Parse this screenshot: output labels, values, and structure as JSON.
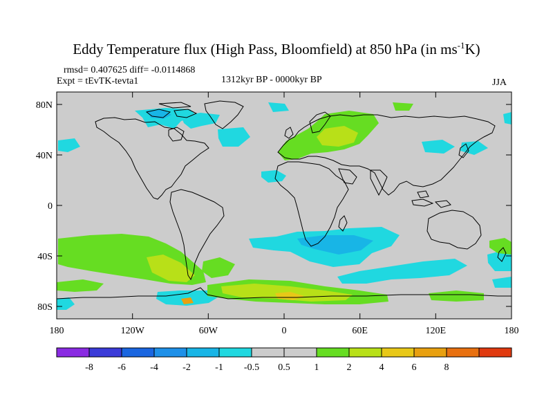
{
  "title": {
    "main": "Eddy Temperature flux (High Pass, Bloomfield) at 850 hPa (in ms",
    "sup": "-1",
    "tail": "K)"
  },
  "stats": {
    "rmsd_diff": "rmsd= 0.407625 diff= -0.0114868",
    "expt": "Expt = tEvTK-tevta1",
    "period": "1312kyr BP - 0000kyr BP",
    "season": "JJA"
  },
  "axes": {
    "lat_labels": [
      "80N",
      "40N",
      "0",
      "40S",
      "80S"
    ],
    "lon_labels": [
      "180",
      "120W",
      "60W",
      "0",
      "60E",
      "120E",
      "180"
    ]
  },
  "colorbar": {
    "colors": [
      "#8a2be2",
      "#3b3bd8",
      "#1a66e0",
      "#1e90e8",
      "#18b5e6",
      "#20d8e0",
      "#cccccc",
      "#cccccc",
      "#66dd22",
      "#b8e018",
      "#e8c818",
      "#e8a010",
      "#e87010",
      "#e03a10"
    ],
    "labels": [
      "-8",
      "-6",
      "-4",
      "-2",
      "-1",
      "-0.5",
      "0.5",
      "1",
      "2",
      "4",
      "6",
      "8"
    ]
  },
  "colors": {
    "background": "#cccccc",
    "coast": "#000000"
  }
}
